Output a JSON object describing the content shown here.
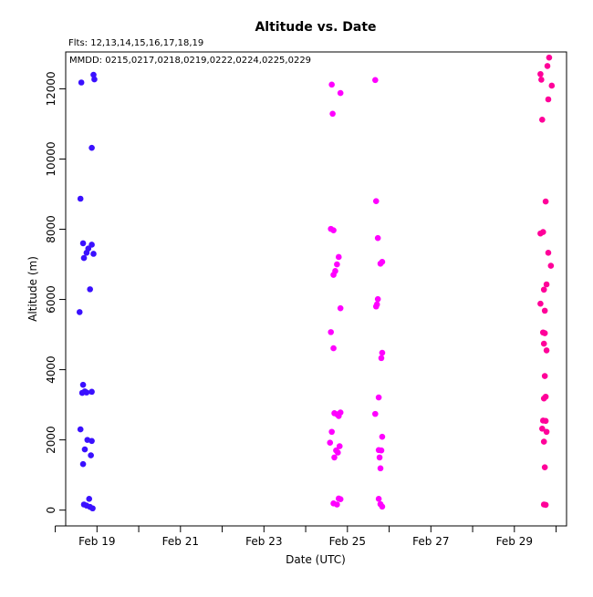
{
  "chart_data": {
    "type": "scatter",
    "title": "Altitude  vs. Date",
    "annotations": {
      "flights": "Flts: 12,13,14,15,16,17,18,19",
      "mmdd": "MMDD: 0215,0217,0218,0219,0222,0224,0225,0229"
    },
    "xlabel": "Date (UTC)",
    "ylabel": "Altitude (m)",
    "xlim": [
      "2008-02-18 06:00",
      "2008-03-01 06:00"
    ],
    "ylim": [
      -450,
      13050
    ],
    "x_ticks": [
      {
        "date": "2008-02-18",
        "label": ""
      },
      {
        "date": "2008-02-19",
        "label": "Feb 19"
      },
      {
        "date": "2008-02-20",
        "label": ""
      },
      {
        "date": "2008-02-21",
        "label": "Feb 21"
      },
      {
        "date": "2008-02-22",
        "label": ""
      },
      {
        "date": "2008-02-23",
        "label": "Feb 23"
      },
      {
        "date": "2008-02-24",
        "label": ""
      },
      {
        "date": "2008-02-25",
        "label": "Feb 25"
      },
      {
        "date": "2008-02-26",
        "label": ""
      },
      {
        "date": "2008-02-27",
        "label": "Feb 27"
      },
      {
        "date": "2008-02-28",
        "label": ""
      },
      {
        "date": "2008-02-29",
        "label": "Feb 29"
      },
      {
        "date": "2008-03-01",
        "label": ""
      }
    ],
    "y_ticks": [
      0,
      2000,
      4000,
      6000,
      8000,
      10000,
      12000
    ],
    "grid": false,
    "series": [
      {
        "color": "#3a10ff",
        "points": [
          [
            "2008-02-18 15:00",
            12180
          ],
          [
            "2008-02-18 22:00",
            12400
          ],
          [
            "2008-02-18 22:30",
            12270
          ],
          [
            "2008-02-18 21:00",
            10320
          ],
          [
            "2008-02-18 14:30",
            8870
          ],
          [
            "2008-02-18 16:00",
            7600
          ],
          [
            "2008-02-18 21:00",
            7560
          ],
          [
            "2008-02-18 19:00",
            7450
          ],
          [
            "2008-02-18 18:00",
            7330
          ],
          [
            "2008-02-18 22:00",
            7300
          ],
          [
            "2008-02-18 16:30",
            7180
          ],
          [
            "2008-02-18 20:00",
            6290
          ],
          [
            "2008-02-18 14:00",
            5640
          ],
          [
            "2008-02-18 16:00",
            3570
          ],
          [
            "2008-02-18 17:00",
            3380
          ],
          [
            "2008-02-18 21:00",
            3370
          ],
          [
            "2008-02-18 15:30",
            3340
          ],
          [
            "2008-02-18 18:00",
            3350
          ],
          [
            "2008-02-18 14:30",
            2300
          ],
          [
            "2008-02-18 18:30",
            2000
          ],
          [
            "2008-02-18 21:00",
            1970
          ],
          [
            "2008-02-18 17:00",
            1730
          ],
          [
            "2008-02-18 20:30",
            1560
          ],
          [
            "2008-02-18 16:00",
            1310
          ],
          [
            "2008-02-18 19:30",
            320
          ],
          [
            "2008-02-18 16:30",
            160
          ],
          [
            "2008-02-18 18:00",
            130
          ],
          [
            "2008-02-18 20:00",
            90
          ],
          [
            "2008-02-18 21:30",
            50
          ]
        ]
      },
      {
        "color": "#ff00ff",
        "points": [
          [
            "2008-02-24 15:00",
            12120
          ],
          [
            "2008-02-24 20:00",
            11880
          ],
          [
            "2008-02-24 15:30",
            11290
          ],
          [
            "2008-02-24 14:30",
            8010
          ],
          [
            "2008-02-24 16:00",
            7970
          ],
          [
            "2008-02-24 19:00",
            7210
          ],
          [
            "2008-02-24 18:00",
            7000
          ],
          [
            "2008-02-24 17:00",
            6810
          ],
          [
            "2008-02-24 16:00",
            6700
          ],
          [
            "2008-02-24 20:00",
            5750
          ],
          [
            "2008-02-24 14:30",
            5070
          ],
          [
            "2008-02-24 16:00",
            4610
          ],
          [
            "2008-02-24 16:30",
            2760
          ],
          [
            "2008-02-24 20:00",
            2780
          ],
          [
            "2008-02-24 18:00",
            2730
          ],
          [
            "2008-02-24 19:00",
            2680
          ],
          [
            "2008-02-24 15:00",
            2230
          ],
          [
            "2008-02-24 14:00",
            1920
          ],
          [
            "2008-02-24 19:30",
            1820
          ],
          [
            "2008-02-24 17:30",
            1700
          ],
          [
            "2008-02-24 18:30",
            1640
          ],
          [
            "2008-02-24 16:30",
            1500
          ],
          [
            "2008-02-24 19:00",
            330
          ],
          [
            "2008-02-24 20:00",
            310
          ],
          [
            "2008-02-24 16:00",
            190
          ],
          [
            "2008-02-24 18:00",
            160
          ],
          [
            "2008-02-25 16:00",
            12250
          ],
          [
            "2008-02-25 16:30",
            8800
          ],
          [
            "2008-02-25 17:30",
            7750
          ],
          [
            "2008-02-25 20:00",
            7070
          ],
          [
            "2008-02-25 19:00",
            7020
          ],
          [
            "2008-02-25 17:30",
            6010
          ],
          [
            "2008-02-25 17:00",
            5860
          ],
          [
            "2008-02-25 16:30",
            5800
          ],
          [
            "2008-02-25 20:00",
            4480
          ],
          [
            "2008-02-25 19:30",
            4330
          ],
          [
            "2008-02-25 18:00",
            3210
          ],
          [
            "2008-02-25 16:00",
            2740
          ],
          [
            "2008-02-25 20:00",
            2090
          ],
          [
            "2008-02-25 18:00",
            1710
          ],
          [
            "2008-02-25 19:30",
            1700
          ],
          [
            "2008-02-25 18:30",
            1500
          ],
          [
            "2008-02-25 19:00",
            1190
          ],
          [
            "2008-02-25 18:00",
            320
          ],
          [
            "2008-02-25 19:00",
            170
          ],
          [
            "2008-02-25 20:00",
            100
          ]
        ]
      },
      {
        "color": "#ff0099",
        "points": [
          [
            "2008-02-29 20:00",
            12890
          ],
          [
            "2008-02-29 19:00",
            12650
          ],
          [
            "2008-02-29 15:00",
            12420
          ],
          [
            "2008-02-29 15:30",
            12260
          ],
          [
            "2008-02-29 21:30",
            12090
          ],
          [
            "2008-02-29 19:30",
            11700
          ],
          [
            "2008-02-29 16:00",
            11120
          ],
          [
            "2008-02-29 18:00",
            8790
          ],
          [
            "2008-02-29 16:30",
            7920
          ],
          [
            "2008-02-29 15:00",
            7880
          ],
          [
            "2008-02-29 19:30",
            7330
          ],
          [
            "2008-02-29 21:00",
            6960
          ],
          [
            "2008-02-29 18:30",
            6430
          ],
          [
            "2008-02-29 17:00",
            6280
          ],
          [
            "2008-02-29 15:00",
            5880
          ],
          [
            "2008-02-29 17:30",
            5680
          ],
          [
            "2008-02-29 16:30",
            5060
          ],
          [
            "2008-02-29 17:30",
            5040
          ],
          [
            "2008-02-29 17:00",
            4740
          ],
          [
            "2008-02-29 18:30",
            4550
          ],
          [
            "2008-02-29 17:30",
            3820
          ],
          [
            "2008-02-29 18:00",
            3230
          ],
          [
            "2008-02-29 17:00",
            3180
          ],
          [
            "2008-02-29 16:30",
            2550
          ],
          [
            "2008-02-29 18:00",
            2540
          ],
          [
            "2008-02-29 16:00",
            2320
          ],
          [
            "2008-02-29 18:30",
            2230
          ],
          [
            "2008-02-29 17:00",
            1950
          ],
          [
            "2008-02-29 17:30",
            1220
          ],
          [
            "2008-02-29 17:00",
            160
          ],
          [
            "2008-02-29 18:00",
            150
          ]
        ]
      }
    ]
  }
}
